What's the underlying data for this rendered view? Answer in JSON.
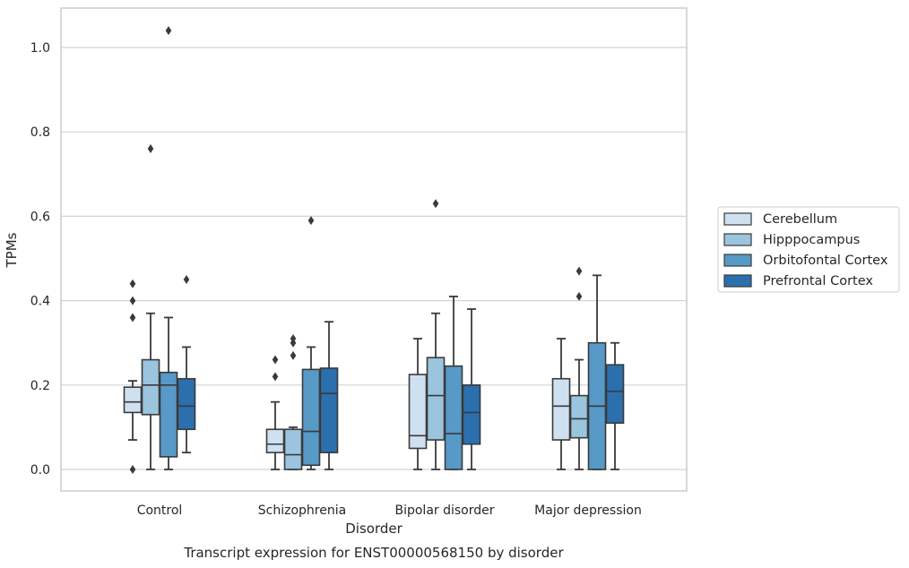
{
  "chart_data": {
    "type": "box",
    "xlabel": "Disorder",
    "ylabel": "TPMs",
    "caption": "Transcript expression for ENST00000568150 by disorder",
    "ylim": [
      -0.05,
      1.09
    ],
    "yticks": [
      "0.0",
      "0.2",
      "0.4",
      "0.6",
      "0.8",
      "1.0"
    ],
    "grid": "horizontal",
    "legend_position": "right",
    "categories": [
      "Control",
      "Schizophrenia",
      "Bipolar disorder",
      "Major depression"
    ],
    "series": [
      {
        "name": "Cerebellum",
        "color": "#cfe0f0",
        "boxes": [
          {
            "whisker_low": 0.07,
            "q1": 0.135,
            "median": 0.16,
            "q3": 0.195,
            "whisker_high": 0.21,
            "outliers": [
              0.44,
              0.4,
              0.36,
              0.0
            ]
          },
          {
            "whisker_low": 0.0,
            "q1": 0.04,
            "median": 0.06,
            "q3": 0.095,
            "whisker_high": 0.16,
            "outliers": [
              0.26,
              0.22
            ]
          },
          {
            "whisker_low": 0.0,
            "q1": 0.05,
            "median": 0.08,
            "q3": 0.225,
            "whisker_high": 0.31,
            "outliers": []
          },
          {
            "whisker_low": 0.0,
            "q1": 0.07,
            "median": 0.15,
            "q3": 0.215,
            "whisker_high": 0.31,
            "outliers": []
          }
        ]
      },
      {
        "name": "Hipppocampus",
        "color": "#9bc4de",
        "boxes": [
          {
            "whisker_low": 0.0,
            "q1": 0.13,
            "median": 0.2,
            "q3": 0.26,
            "whisker_high": 0.37,
            "outliers": [
              0.76
            ]
          },
          {
            "whisker_low": 0.0,
            "q1": 0.0,
            "median": 0.035,
            "q3": 0.095,
            "whisker_high": 0.1,
            "outliers": [
              0.31,
              0.3,
              0.27
            ]
          },
          {
            "whisker_low": 0.0,
            "q1": 0.07,
            "median": 0.175,
            "q3": 0.265,
            "whisker_high": 0.37,
            "outliers": [
              0.63
            ]
          },
          {
            "whisker_low": 0.0,
            "q1": 0.075,
            "median": 0.12,
            "q3": 0.175,
            "whisker_high": 0.26,
            "outliers": [
              0.47,
              0.41
            ]
          }
        ]
      },
      {
        "name": "Orbitofontal Cortex",
        "color": "#5799c7",
        "boxes": [
          {
            "whisker_low": 0.0,
            "q1": 0.03,
            "median": 0.2,
            "q3": 0.23,
            "whisker_high": 0.36,
            "outliers": [
              1.04
            ]
          },
          {
            "whisker_low": 0.0,
            "q1": 0.01,
            "median": 0.09,
            "q3": 0.237,
            "whisker_high": 0.29,
            "outliers": [
              0.59
            ]
          },
          {
            "whisker_low": 0.0,
            "q1": 0.0,
            "median": 0.085,
            "q3": 0.245,
            "whisker_high": 0.41,
            "outliers": []
          },
          {
            "whisker_low": 0.0,
            "q1": 0.0,
            "median": 0.15,
            "q3": 0.3,
            "whisker_high": 0.46,
            "outliers": []
          }
        ]
      },
      {
        "name": "Prefrontal Cortex",
        "color": "#2c6faf",
        "boxes": [
          {
            "whisker_low": 0.04,
            "q1": 0.095,
            "median": 0.15,
            "q3": 0.215,
            "whisker_high": 0.29,
            "outliers": [
              0.45
            ]
          },
          {
            "whisker_low": 0.0,
            "q1": 0.04,
            "median": 0.18,
            "q3": 0.24,
            "whisker_high": 0.35,
            "outliers": []
          },
          {
            "whisker_low": 0.0,
            "q1": 0.06,
            "median": 0.135,
            "q3": 0.2,
            "whisker_high": 0.38,
            "outliers": []
          },
          {
            "whisker_low": 0.0,
            "q1": 0.11,
            "median": 0.185,
            "q3": 0.248,
            "whisker_high": 0.3,
            "outliers": []
          }
        ]
      }
    ]
  }
}
